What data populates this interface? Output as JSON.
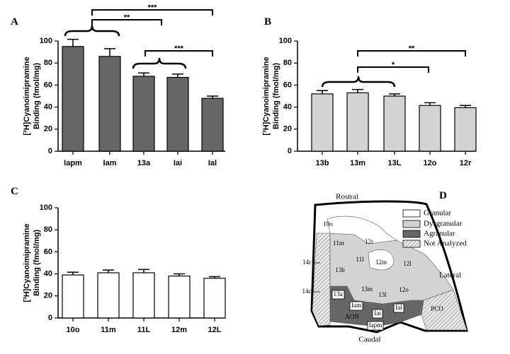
{
  "chart_data": [
    {
      "type": "bar",
      "panel": "A",
      "ylabel": [
        "[³H]Cyanoimipramine",
        "Binding (fmol/mg)"
      ],
      "categories": [
        "Iapm",
        "Iam",
        "13a",
        "Iai",
        "Ial"
      ],
      "values": [
        95,
        86,
        68,
        67,
        48
      ],
      "errors": [
        6.5,
        7,
        3,
        3,
        2
      ],
      "color": "#666666",
      "ylim": [
        0,
        100
      ],
      "yticks": [
        0,
        20,
        40,
        60,
        80,
        100
      ],
      "annotations": [
        "***",
        "**",
        "***"
      ]
    },
    {
      "type": "bar",
      "panel": "B",
      "ylabel": [
        "[³H]Cyanoimipramine",
        "Binding (fmol/mg)"
      ],
      "categories": [
        "13b",
        "13m",
        "13L",
        "12o",
        "12r"
      ],
      "values": [
        52,
        53,
        50,
        41.5,
        39.5
      ],
      "errors": [
        3,
        3,
        2,
        2.5,
        2
      ],
      "color": "#d3d3d3",
      "ylim": [
        0,
        100
      ],
      "yticks": [
        0,
        20,
        40,
        60,
        80,
        100
      ],
      "annotations": [
        "**",
        "*"
      ]
    },
    {
      "type": "bar",
      "panel": "C",
      "ylabel": [
        "[³H]Cyanoimipramine",
        "Binding (fmol/mg)"
      ],
      "categories": [
        "10o",
        "11m",
        "11L",
        "12m",
        "12L"
      ],
      "values": [
        39,
        41,
        41,
        38,
        36
      ],
      "errors": [
        2.5,
        2.5,
        3,
        2,
        1.5
      ],
      "color": "#ffffff",
      "ylim": [
        0,
        100
      ],
      "yticks": [
        0,
        20,
        40,
        60,
        80,
        100
      ],
      "annotations": []
    }
  ],
  "diagram": {
    "panel": "D",
    "directions": [
      "Rostral",
      "Lateral",
      "Caudal"
    ],
    "legend": [
      "Granular",
      "Dysgranular",
      "Agranular",
      "Not Analyzed"
    ],
    "regions": [
      "10o",
      "11m",
      "12r",
      "11l",
      "12m",
      "12l",
      "13b",
      "13m",
      "13l",
      "12o",
      "13a",
      "Iam",
      "Iai",
      "Ial",
      "AON",
      "Iapm",
      "PCO",
      "14r",
      "14c"
    ]
  }
}
